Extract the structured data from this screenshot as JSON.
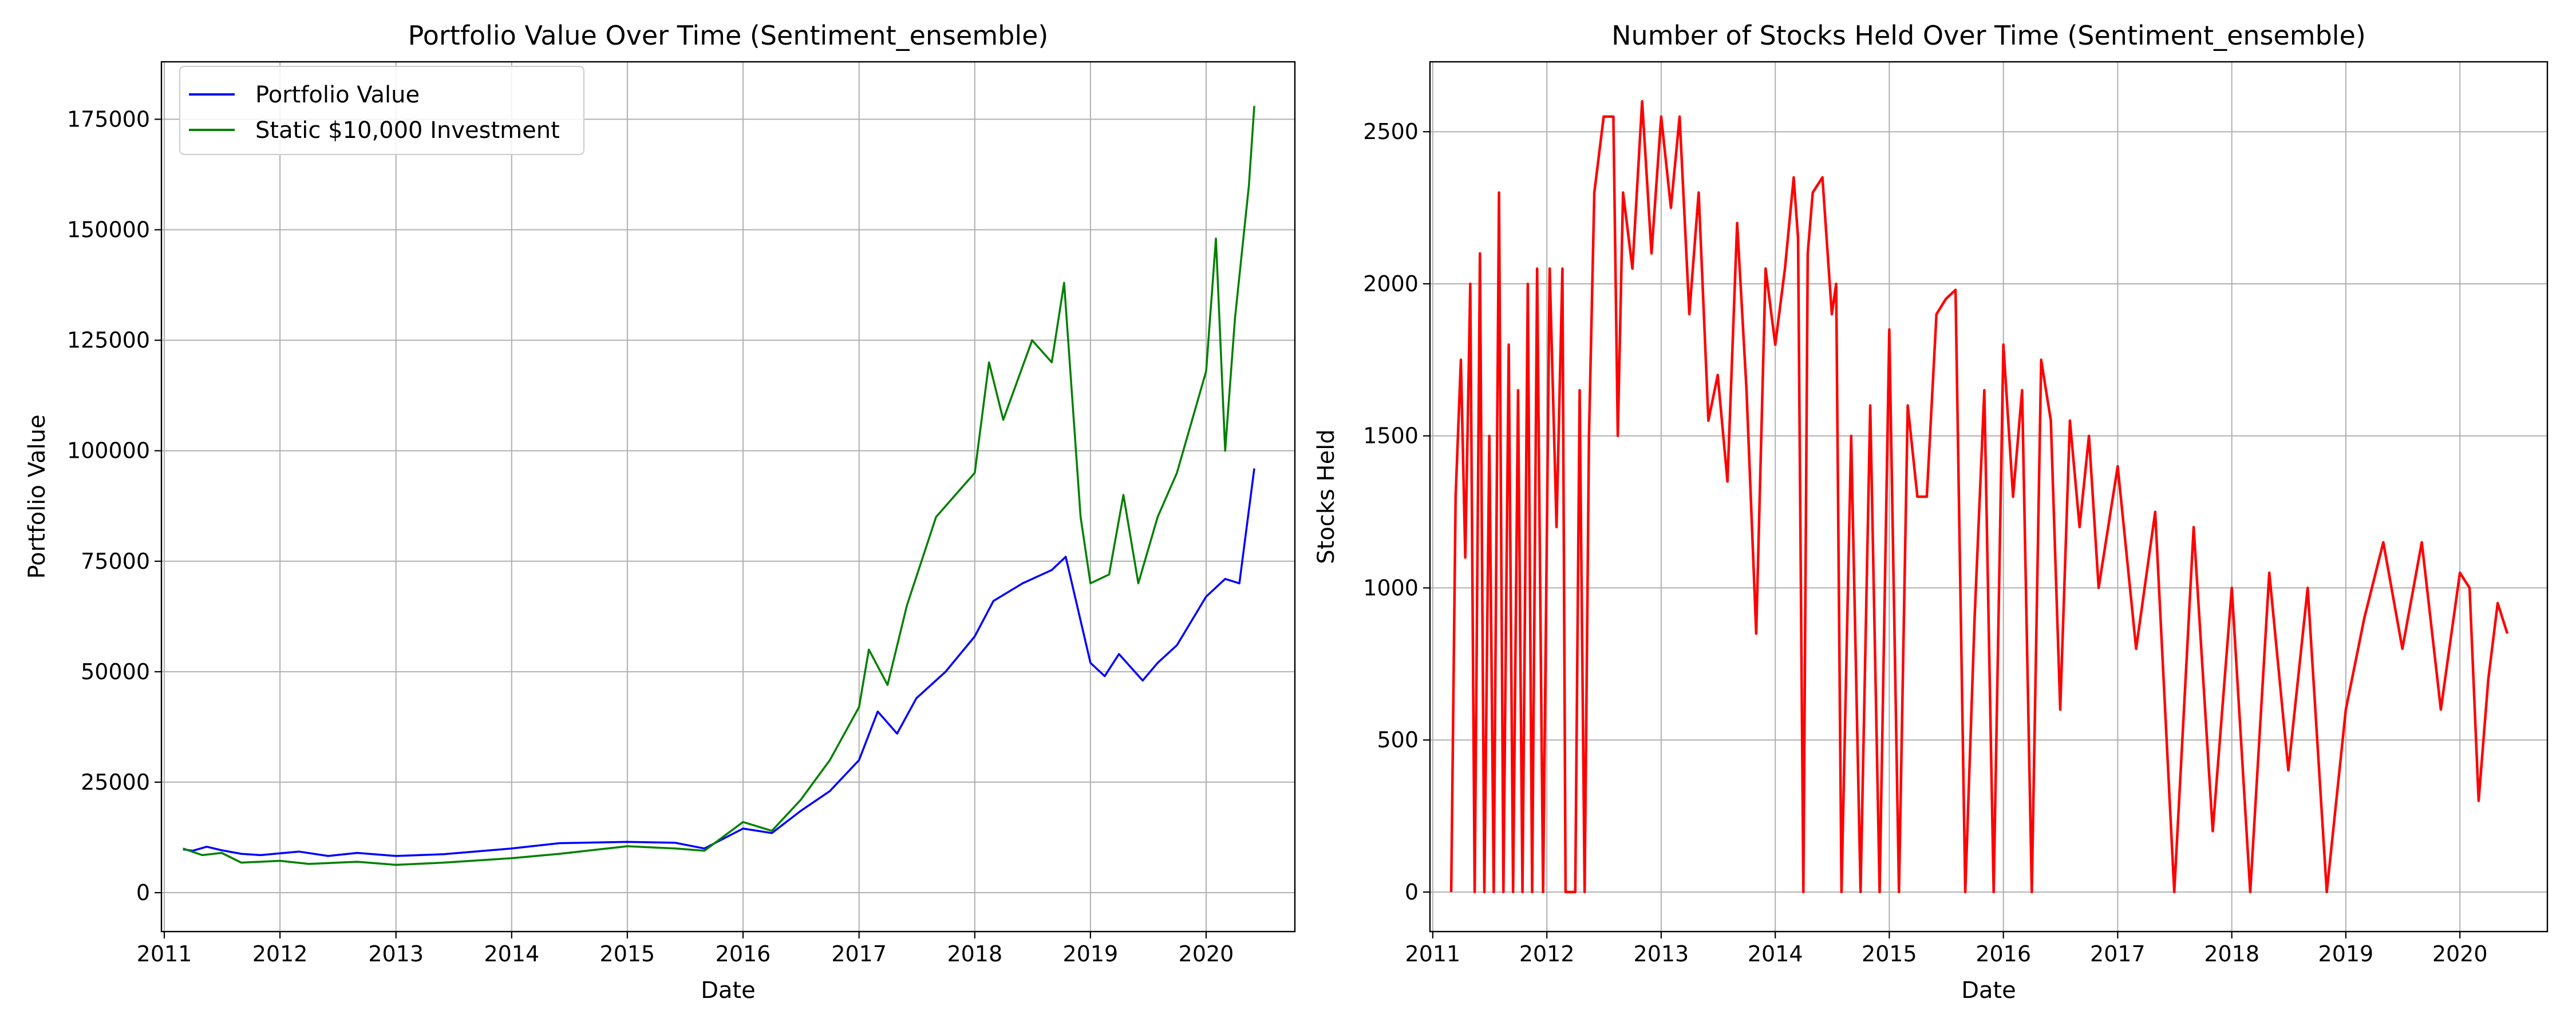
{
  "colors": {
    "portfolio": "#0000ff",
    "static": "#008000",
    "stocks": "#ff0000",
    "grid": "#b0b0b0",
    "axes": "#000000",
    "background": "#ffffff"
  },
  "chart_data": [
    {
      "type": "line",
      "title": "Portfolio Value Over Time (Sentiment_ensemble)",
      "xlabel": "Date",
      "ylabel": "Portfolio Value",
      "x_axis": "date",
      "xlim": [
        "2010-12-23",
        "2020-10-07"
      ],
      "ylim": [
        -8800,
        188000
      ],
      "xticks": [
        "2011-01-01",
        "2012-01-01",
        "2013-01-01",
        "2014-01-01",
        "2015-01-01",
        "2016-01-01",
        "2017-01-01",
        "2018-01-01",
        "2019-01-01",
        "2020-01-01"
      ],
      "xtick_labels": [
        "2011",
        "2012",
        "2013",
        "2014",
        "2015",
        "2016",
        "2017",
        "2018",
        "2019",
        "2020"
      ],
      "yticks": [
        0,
        25000,
        50000,
        75000,
        100000,
        125000,
        150000,
        175000
      ],
      "ytick_labels": [
        "0",
        "25000",
        "50000",
        "75000",
        "100000",
        "125000",
        "150000",
        "175000"
      ],
      "grid": true,
      "legend": "top-left",
      "series": [
        {
          "name": "Portfolio Value",
          "color_key": "portfolio",
          "points": [
            [
              "2011-03-01",
              9800
            ],
            [
              "2011-04-01",
              9500
            ],
            [
              "2011-05-15",
              10400
            ],
            [
              "2011-07-01",
              9600
            ],
            [
              "2011-09-01",
              8800
            ],
            [
              "2011-11-01",
              8500
            ],
            [
              "2012-01-01",
              8900
            ],
            [
              "2012-03-01",
              9300
            ],
            [
              "2012-06-01",
              8300
            ],
            [
              "2012-09-01",
              9000
            ],
            [
              "2013-01-01",
              8300
            ],
            [
              "2013-06-01",
              8700
            ],
            [
              "2014-01-01",
              10000
            ],
            [
              "2014-06-01",
              11200
            ],
            [
              "2015-01-01",
              11500
            ],
            [
              "2015-06-01",
              11300
            ],
            [
              "2015-09-01",
              10000
            ],
            [
              "2016-01-01",
              14500
            ],
            [
              "2016-04-01",
              13500
            ],
            [
              "2016-07-01",
              18500
            ],
            [
              "2016-10-01",
              23000
            ],
            [
              "2017-01-01",
              30000
            ],
            [
              "2017-03-01",
              41000
            ],
            [
              "2017-05-01",
              36000
            ],
            [
              "2017-07-01",
              44000
            ],
            [
              "2017-10-01",
              50000
            ],
            [
              "2018-01-01",
              58000
            ],
            [
              "2018-03-01",
              66000
            ],
            [
              "2018-06-01",
              70000
            ],
            [
              "2018-09-01",
              73000
            ],
            [
              "2018-10-15",
              76000
            ],
            [
              "2019-01-01",
              52000
            ],
            [
              "2019-02-15",
              49000
            ],
            [
              "2019-04-01",
              54000
            ],
            [
              "2019-06-15",
              48000
            ],
            [
              "2019-08-01",
              52000
            ],
            [
              "2019-10-01",
              56000
            ],
            [
              "2020-01-01",
              67000
            ],
            [
              "2020-03-01",
              71000
            ],
            [
              "2020-04-15",
              70000
            ],
            [
              "2020-06-01",
              96000
            ]
          ]
        },
        {
          "name": "Static $10,000 Investment",
          "color_key": "static",
          "points": [
            [
              "2011-03-01",
              10000
            ],
            [
              "2011-05-01",
              8500
            ],
            [
              "2011-07-01",
              9000
            ],
            [
              "2011-09-01",
              6800
            ],
            [
              "2012-01-01",
              7200
            ],
            [
              "2012-04-01",
              6500
            ],
            [
              "2012-09-01",
              7000
            ],
            [
              "2013-01-01",
              6300
            ],
            [
              "2013-06-01",
              6800
            ],
            [
              "2014-01-01",
              7800
            ],
            [
              "2014-06-01",
              8800
            ],
            [
              "2015-01-01",
              10500
            ],
            [
              "2015-06-01",
              10000
            ],
            [
              "2015-09-01",
              9500
            ],
            [
              "2016-01-01",
              16000
            ],
            [
              "2016-04-01",
              14000
            ],
            [
              "2016-07-01",
              21000
            ],
            [
              "2016-10-01",
              30000
            ],
            [
              "2017-01-01",
              42000
            ],
            [
              "2017-02-01",
              55000
            ],
            [
              "2017-04-01",
              47000
            ],
            [
              "2017-06-01",
              65000
            ],
            [
              "2017-09-01",
              85000
            ],
            [
              "2018-01-01",
              95000
            ],
            [
              "2018-02-15",
              120000
            ],
            [
              "2018-04-01",
              107000
            ],
            [
              "2018-07-01",
              125000
            ],
            [
              "2018-09-01",
              120000
            ],
            [
              "2018-10-10",
              138000
            ],
            [
              "2018-12-01",
              85000
            ],
            [
              "2019-01-01",
              70000
            ],
            [
              "2019-03-01",
              72000
            ],
            [
              "2019-04-15",
              90000
            ],
            [
              "2019-06-01",
              70000
            ],
            [
              "2019-08-01",
              85000
            ],
            [
              "2019-10-01",
              95000
            ],
            [
              "2020-01-01",
              118000
            ],
            [
              "2020-02-01",
              148000
            ],
            [
              "2020-03-01",
              100000
            ],
            [
              "2020-04-01",
              130000
            ],
            [
              "2020-05-15",
              160000
            ],
            [
              "2020-06-01",
              178000
            ]
          ]
        }
      ]
    },
    {
      "type": "line",
      "title": "Number of Stocks Held Over Time (Sentiment_ensemble)",
      "xlabel": "Date",
      "ylabel": "Stocks Held",
      "x_axis": "date",
      "xlim": [
        "2010-12-23",
        "2020-10-07"
      ],
      "ylim": [
        -130,
        2730
      ],
      "xticks": [
        "2011-01-01",
        "2012-01-01",
        "2013-01-01",
        "2014-01-01",
        "2015-01-01",
        "2016-01-01",
        "2017-01-01",
        "2018-01-01",
        "2019-01-01",
        "2020-01-01"
      ],
      "xtick_labels": [
        "2011",
        "2012",
        "2013",
        "2014",
        "2015",
        "2016",
        "2017",
        "2018",
        "2019",
        "2020"
      ],
      "yticks": [
        0,
        500,
        1000,
        1500,
        2000,
        2500
      ],
      "ytick_labels": [
        "0",
        "500",
        "1000",
        "1500",
        "2000",
        "2500"
      ],
      "grid": true,
      "series": [
        {
          "color_key": "stocks",
          "points": [
            [
              "2011-03-01",
              0
            ],
            [
              "2011-03-15",
              1300
            ],
            [
              "2011-04-01",
              1750
            ],
            [
              "2011-04-15",
              1100
            ],
            [
              "2011-05-01",
              2000
            ],
            [
              "2011-05-15",
              0
            ],
            [
              "2011-06-01",
              2100
            ],
            [
              "2011-06-15",
              0
            ],
            [
              "2011-07-01",
              1500
            ],
            [
              "2011-07-15",
              0
            ],
            [
              "2011-08-01",
              2300
            ],
            [
              "2011-08-15",
              0
            ],
            [
              "2011-09-01",
              1800
            ],
            [
              "2011-09-15",
              0
            ],
            [
              "2011-10-01",
              1650
            ],
            [
              "2011-10-15",
              0
            ],
            [
              "2011-11-01",
              2000
            ],
            [
              "2011-11-15",
              0
            ],
            [
              "2011-12-01",
              2050
            ],
            [
              "2011-12-20",
              0
            ],
            [
              "2012-01-10",
              2050
            ],
            [
              "2012-02-01",
              1200
            ],
            [
              "2012-02-20",
              2050
            ],
            [
              "2012-03-01",
              0
            ],
            [
              "2012-04-01",
              0
            ],
            [
              "2012-04-15",
              1650
            ],
            [
              "2012-05-01",
              0
            ],
            [
              "2012-05-15",
              1500
            ],
            [
              "2012-06-01",
              2300
            ],
            [
              "2012-07-01",
              2550
            ],
            [
              "2012-08-01",
              2550
            ],
            [
              "2012-08-15",
              1500
            ],
            [
              "2012-09-01",
              2300
            ],
            [
              "2012-10-01",
              2050
            ],
            [
              "2012-11-01",
              2600
            ],
            [
              "2012-12-01",
              2100
            ],
            [
              "2013-01-01",
              2550
            ],
            [
              "2013-02-01",
              2250
            ],
            [
              "2013-03-01",
              2550
            ],
            [
              "2013-04-01",
              1900
            ],
            [
              "2013-05-01",
              2300
            ],
            [
              "2013-06-01",
              1550
            ],
            [
              "2013-07-01",
              1700
            ],
            [
              "2013-08-01",
              1350
            ],
            [
              "2013-09-01",
              2200
            ],
            [
              "2013-10-01",
              1650
            ],
            [
              "2013-11-01",
              850
            ],
            [
              "2013-12-01",
              2050
            ],
            [
              "2014-01-01",
              1800
            ],
            [
              "2014-02-01",
              2050
            ],
            [
              "2014-03-01",
              2350
            ],
            [
              "2014-03-15",
              2150
            ],
            [
              "2014-04-01",
              0
            ],
            [
              "2014-04-15",
              2100
            ],
            [
              "2014-05-01",
              2300
            ],
            [
              "2014-06-01",
              2350
            ],
            [
              "2014-07-01",
              1900
            ],
            [
              "2014-07-15",
              2000
            ],
            [
              "2014-08-01",
              0
            ],
            [
              "2014-09-01",
              1500
            ],
            [
              "2014-10-01",
              0
            ],
            [
              "2014-11-01",
              1600
            ],
            [
              "2014-12-01",
              0
            ],
            [
              "2015-01-01",
              1850
            ],
            [
              "2015-02-01",
              0
            ],
            [
              "2015-03-01",
              1600
            ],
            [
              "2015-04-01",
              1300
            ],
            [
              "2015-05-01",
              1300
            ],
            [
              "2015-06-01",
              1900
            ],
            [
              "2015-07-01",
              1950
            ],
            [
              "2015-08-01",
              1980
            ],
            [
              "2015-09-01",
              0
            ],
            [
              "2015-10-01",
              900
            ],
            [
              "2015-11-01",
              1650
            ],
            [
              "2015-12-01",
              0
            ],
            [
              "2016-01-01",
              1800
            ],
            [
              "2016-02-01",
              1300
            ],
            [
              "2016-03-01",
              1650
            ],
            [
              "2016-04-01",
              0
            ],
            [
              "2016-05-01",
              1750
            ],
            [
              "2016-06-01",
              1550
            ],
            [
              "2016-07-01",
              600
            ],
            [
              "2016-08-01",
              1550
            ],
            [
              "2016-09-01",
              1200
            ],
            [
              "2016-10-01",
              1500
            ],
            [
              "2016-11-01",
              1000
            ],
            [
              "2017-01-01",
              1400
            ],
            [
              "2017-03-01",
              800
            ],
            [
              "2017-05-01",
              1250
            ],
            [
              "2017-07-01",
              0
            ],
            [
              "2017-09-01",
              1200
            ],
            [
              "2017-11-01",
              200
            ],
            [
              "2018-01-01",
              1000
            ],
            [
              "2018-03-01",
              0
            ],
            [
              "2018-05-01",
              1050
            ],
            [
              "2018-07-01",
              400
            ],
            [
              "2018-09-01",
              1000
            ],
            [
              "2018-11-01",
              0
            ],
            [
              "2019-01-01",
              600
            ],
            [
              "2019-03-01",
              900
            ],
            [
              "2019-05-01",
              1150
            ],
            [
              "2019-07-01",
              800
            ],
            [
              "2019-09-01",
              1150
            ],
            [
              "2019-11-01",
              600
            ],
            [
              "2020-01-01",
              1050
            ],
            [
              "2020-02-01",
              1000
            ],
            [
              "2020-03-01",
              300
            ],
            [
              "2020-04-01",
              700
            ],
            [
              "2020-05-01",
              950
            ],
            [
              "2020-06-01",
              850
            ]
          ]
        }
      ]
    }
  ]
}
